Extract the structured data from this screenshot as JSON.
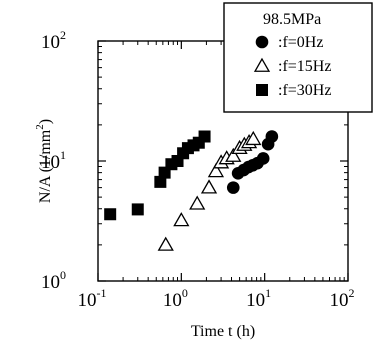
{
  "chart_data": {
    "type": "scatter",
    "x_scale": "log",
    "y_scale": "log",
    "xlim": [
      0.1,
      100
    ],
    "ylim": [
      1,
      100
    ],
    "xlabel": "Time  t (h)",
    "ylabel_main": "N/A  (1/mm",
    "ylabel_sup": "2",
    "ylabel_close": ")",
    "grid": false,
    "x_ticks": [
      {
        "value": 0.1,
        "base": "10",
        "exp": "-1"
      },
      {
        "value": 1,
        "base": "10",
        "exp": "0"
      },
      {
        "value": 10,
        "base": "10",
        "exp": "1"
      },
      {
        "value": 100,
        "base": "10",
        "exp": "2"
      }
    ],
    "y_ticks": [
      {
        "value": 1,
        "base": "10",
        "exp": "0"
      },
      {
        "value": 10,
        "base": "10",
        "exp": "1"
      },
      {
        "value": 100,
        "base": "10",
        "exp": "2"
      }
    ],
    "legend": {
      "title": "98.5MPa",
      "placement": "top-right"
    },
    "series": [
      {
        "name": ":f=0Hz",
        "marker": "filled-circle",
        "color": "#000000",
        "points": [
          {
            "x": 4.2,
            "y": 6.0
          },
          {
            "x": 4.8,
            "y": 7.9
          },
          {
            "x": 5.6,
            "y": 8.4
          },
          {
            "x": 6.4,
            "y": 8.9
          },
          {
            "x": 7.2,
            "y": 9.2
          },
          {
            "x": 8.2,
            "y": 9.6
          },
          {
            "x": 9.6,
            "y": 10.5
          },
          {
            "x": 11.0,
            "y": 13.8
          },
          {
            "x": 12.2,
            "y": 16.0
          }
        ]
      },
      {
        "name": ":f=15Hz",
        "marker": "open-triangle",
        "color": "#000000",
        "points": [
          {
            "x": 0.65,
            "y": 2.0
          },
          {
            "x": 1.0,
            "y": 3.2
          },
          {
            "x": 1.55,
            "y": 4.4
          },
          {
            "x": 2.15,
            "y": 6.0
          },
          {
            "x": 2.6,
            "y": 8.2
          },
          {
            "x": 3.0,
            "y": 9.7
          },
          {
            "x": 3.5,
            "y": 10.5
          },
          {
            "x": 4.2,
            "y": 11.0
          },
          {
            "x": 5.0,
            "y": 12.8
          },
          {
            "x": 5.7,
            "y": 13.6
          },
          {
            "x": 6.5,
            "y": 14.3
          },
          {
            "x": 7.3,
            "y": 15.2
          }
        ]
      },
      {
        "name": ":f=30Hz",
        "marker": "filled-square",
        "color": "#000000",
        "points": [
          {
            "x": 0.14,
            "y": 3.6
          },
          {
            "x": 0.3,
            "y": 3.95
          },
          {
            "x": 0.56,
            "y": 6.7
          },
          {
            "x": 0.63,
            "y": 8.0
          },
          {
            "x": 0.76,
            "y": 9.4
          },
          {
            "x": 0.9,
            "y": 10.0
          },
          {
            "x": 1.05,
            "y": 11.6
          },
          {
            "x": 1.2,
            "y": 12.8
          },
          {
            "x": 1.4,
            "y": 13.5
          },
          {
            "x": 1.62,
            "y": 14.2
          },
          {
            "x": 1.9,
            "y": 16.0
          }
        ]
      }
    ]
  }
}
